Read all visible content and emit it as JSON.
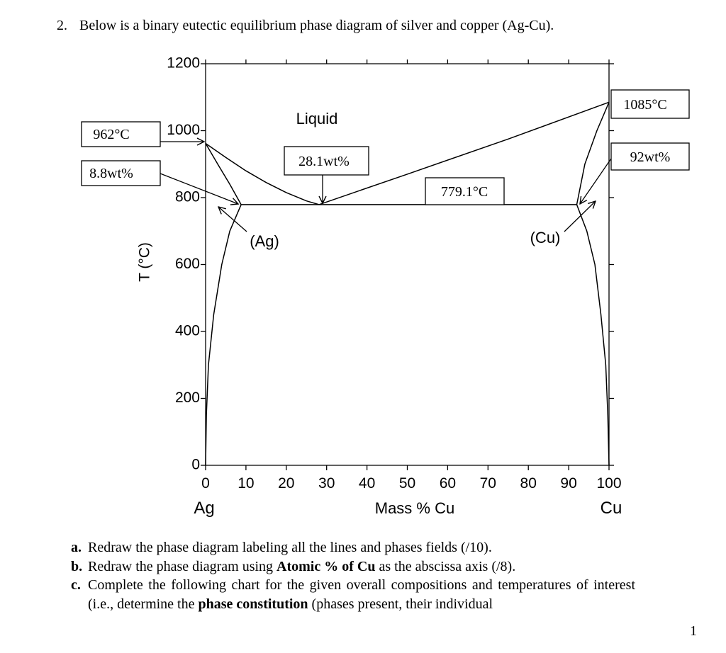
{
  "number": "2.",
  "intro": "Below is a binary eutectic equilibrium phase diagram of silver and copper (Ag-Cu).",
  "chart_data": {
    "type": "line",
    "x_label": "Mass % Cu",
    "y_label": "T (°C)",
    "x_end_labels": [
      "Ag",
      "Cu"
    ],
    "field_labels": [
      "Liquid",
      "(Ag)",
      "(Cu)"
    ],
    "annotations": [
      "962°C",
      "8.8wt%",
      "28.1wt%",
      "779.1°C",
      "1085°C",
      "92wt%"
    ],
    "xlim": [
      0,
      100
    ],
    "ylim": [
      0,
      1200
    ],
    "xticks": [
      0,
      10,
      20,
      30,
      40,
      50,
      60,
      70,
      80,
      90,
      100
    ],
    "yticks": [
      0,
      200,
      400,
      600,
      800,
      1000,
      1200
    ],
    "series": [
      {
        "color": "#000000",
        "x": [
          0,
          5,
          10,
          15,
          20,
          25,
          28.1
        ],
        "y": [
          962,
          920,
          880,
          845,
          815,
          790,
          779.1
        ]
      },
      {
        "color": "#000000",
        "x": [
          28.1,
          50,
          75,
          100
        ],
        "y": [
          779.1,
          870,
          975,
          1085
        ]
      },
      {
        "color": "#000000",
        "x": [
          0,
          3,
          6,
          8.8
        ],
        "y": [
          962,
          900,
          840,
          779.1
        ]
      },
      {
        "color": "#000000",
        "x": [
          100,
          97,
          94,
          92
        ],
        "y": [
          1085,
          1000,
          900,
          779.1
        ]
      },
      {
        "color": "#000000",
        "x": [
          8.8,
          6,
          4,
          2,
          0.7,
          0.2,
          0
        ],
        "y": [
          779.1,
          700,
          600,
          450,
          300,
          150,
          0
        ]
      },
      {
        "color": "#000000",
        "x": [
          92,
          94.5,
          96.5,
          98,
          99.2,
          99.7,
          100
        ],
        "y": [
          779.1,
          700,
          600,
          450,
          300,
          150,
          0
        ]
      },
      {
        "color": "#000000",
        "x": [
          8.8,
          92
        ],
        "y": [
          779.1,
          779.1
        ]
      }
    ]
  },
  "questions": [
    {
      "label": "a.",
      "parts": [
        "Redraw the phase diagram labeling all the lines and phases fields (/10)."
      ]
    },
    {
      "label": "b.",
      "parts": [
        "Redraw the phase diagram using ",
        "Atomic % of Cu",
        " as the abscissa axis (/8)."
      ]
    },
    {
      "label": "c.",
      "parts": [
        "Complete the following chart for the given overall compositions and temperatures of interest (i.e., determine the ",
        "phase constitution",
        " (phases present, their individual"
      ]
    }
  ],
  "page_number": "1"
}
